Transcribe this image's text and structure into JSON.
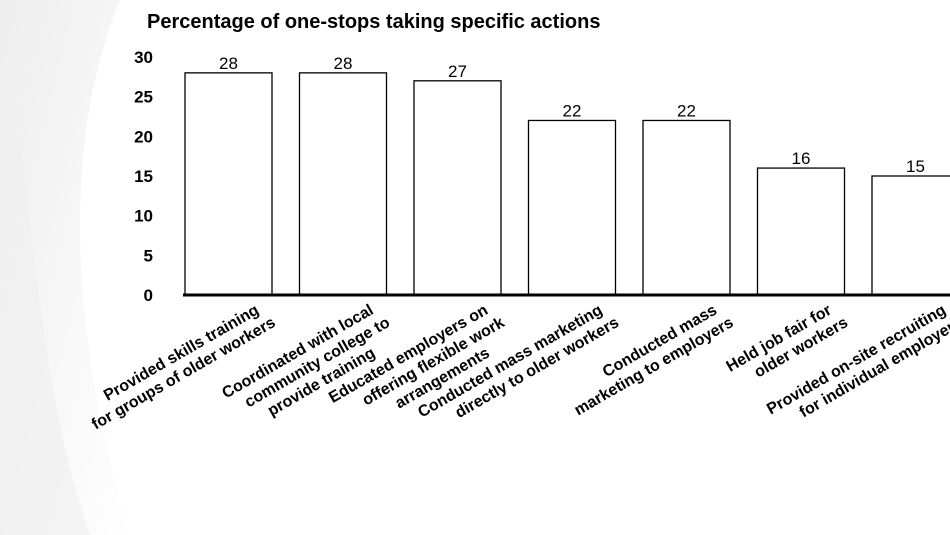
{
  "chart_data": {
    "type": "bar",
    "title": "Percentage of one-stops taking specific actions",
    "xlabel": "",
    "ylabel": "",
    "ylim": [
      0,
      30
    ],
    "yticks": [
      0,
      5,
      10,
      15,
      20,
      25,
      30
    ],
    "grid": false,
    "categories": [
      "Provided skills training for groups of older workers",
      "Coordinated with local community college to provide training",
      "Educated employers on offering flexible work arrangements",
      "Conducted mass marketing directly to older workers",
      "Conducted mass marketing to employers",
      "Held job fair for older workers",
      "Provided on-site recruiting for individual employers"
    ],
    "category_lines": [
      [
        "Provided skills training",
        "for groups of older workers"
      ],
      [
        "Coordinated with local",
        "community college to",
        "provide training"
      ],
      [
        "Educated employers on",
        "offering flexible work",
        "arrangements"
      ],
      [
        "Conducted mass marketing",
        "directly to older workers"
      ],
      [
        "Conducted mass",
        "marketing to employers"
      ],
      [
        "Held job fair for",
        "older workers"
      ],
      [
        "Provided on-site recruiting",
        "for individual employers"
      ]
    ],
    "values": [
      28,
      28,
      27,
      22,
      22,
      16,
      15
    ],
    "data_labels": [
      "28",
      "28",
      "27",
      "22",
      "22",
      "16",
      "15"
    ],
    "bar_fill": "#ffffff",
    "bar_stroke": "#000000"
  }
}
